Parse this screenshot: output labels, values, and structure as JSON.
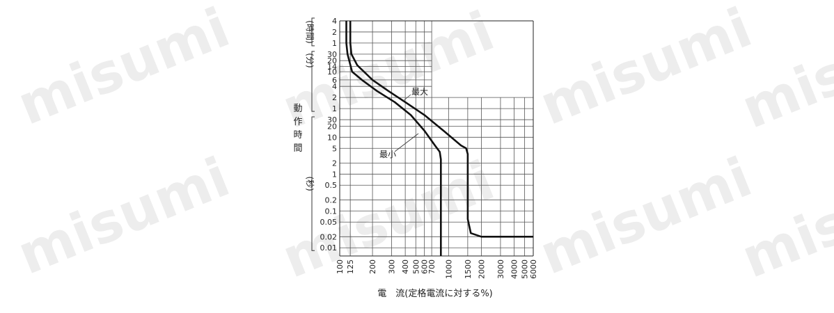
{
  "watermark": "misumi",
  "chart_data": {
    "type": "line",
    "x_scale": "log",
    "y_scale": "log",
    "xlabel": "電　流(定格電流に対する%)",
    "ylabel": "動作時間",
    "x_ticks": [
      100,
      125,
      200,
      300,
      400,
      500,
      600,
      700,
      1000,
      1500,
      2000,
      3000,
      4000,
      5000,
      6000
    ],
    "x_tick_labels": [
      "100",
      "125",
      "200",
      "300",
      "400",
      "500",
      "600",
      "700",
      "1000",
      "1500",
      "2000",
      "3000",
      "4000",
      "5000",
      "6000"
    ],
    "y_groups": [
      {
        "unit": "(時間)",
        "ticks": [
          {
            "label": "4",
            "value": 4
          },
          {
            "label": "2",
            "value": 2
          },
          {
            "label": "1",
            "value": 1
          }
        ]
      },
      {
        "unit": "(分)",
        "ticks": [
          {
            "label": "30",
            "value": 30
          },
          {
            "label": "20",
            "value": 20
          },
          {
            "label": "14",
            "value": 14
          },
          {
            "label": "10",
            "value": 10
          },
          {
            "label": "6",
            "value": 6
          },
          {
            "label": "4",
            "value": 4
          },
          {
            "label": "2",
            "value": 2
          },
          {
            "label": "1",
            "value": 1
          }
        ]
      },
      {
        "unit": "(秒)",
        "ticks": [
          {
            "label": "30",
            "value": 30
          },
          {
            "label": "20",
            "value": 20
          },
          {
            "label": "10",
            "value": 10
          },
          {
            "label": "5",
            "value": 5
          },
          {
            "label": "2",
            "value": 2
          },
          {
            "label": "1",
            "value": 1
          },
          {
            "label": "0.5",
            "value": 0.5
          },
          {
            "label": "0.2",
            "value": 0.2
          },
          {
            "label": "0.1",
            "value": 0.1
          },
          {
            "label": "0.05",
            "value": 0.05
          },
          {
            "label": "0.02",
            "value": 0.02
          },
          {
            "label": "0.01",
            "value": 0.01
          }
        ]
      }
    ],
    "series": [
      {
        "name": "最大",
        "points": [
          [
            125,
            14400
          ],
          [
            125,
            3600
          ],
          [
            128,
            1800
          ],
          [
            145,
            900
          ],
          [
            200,
            360
          ],
          [
            280,
            180
          ],
          [
            400,
            90
          ],
          [
            600,
            40
          ],
          [
            900,
            15
          ],
          [
            1300,
            6
          ],
          [
            1450,
            5
          ],
          [
            1500,
            3.5
          ],
          [
            1500,
            0.06
          ],
          [
            1600,
            0.025
          ],
          [
            2000,
            0.02
          ],
          [
            6000,
            0.02
          ]
        ]
      },
      {
        "name": "最小",
        "points": [
          [
            115,
            14400
          ],
          [
            115,
            3600
          ],
          [
            118,
            1800
          ],
          [
            130,
            600
          ],
          [
            160,
            360
          ],
          [
            220,
            180
          ],
          [
            320,
            90
          ],
          [
            450,
            40
          ],
          [
            600,
            15
          ],
          [
            750,
            6
          ],
          [
            830,
            4
          ],
          [
            850,
            2.5
          ],
          [
            850,
            0.006
          ]
        ]
      }
    ],
    "annotations": [
      "最大",
      "最小"
    ]
  }
}
